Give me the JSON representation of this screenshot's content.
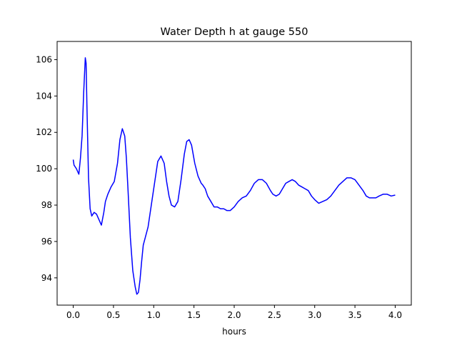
{
  "chart_data": {
    "type": "line",
    "title": "Water Depth h at gauge 550",
    "xlabel": "hours",
    "ylabel": "",
    "xlim": [
      -0.2,
      4.2
    ],
    "ylim": [
      92.5,
      107.0
    ],
    "xticks": [
      0.0,
      0.5,
      1.0,
      1.5,
      2.0,
      2.5,
      3.0,
      3.5,
      4.0
    ],
    "xtick_labels": [
      "0.0",
      "0.5",
      "1.0",
      "1.5",
      "2.0",
      "2.5",
      "3.0",
      "3.5",
      "4.0"
    ],
    "yticks": [
      94,
      96,
      98,
      100,
      102,
      104,
      106
    ],
    "ytick_labels": [
      "94",
      "96",
      "98",
      "100",
      "102",
      "104",
      "106"
    ],
    "grid": false,
    "legend": "none",
    "series": [
      {
        "color": "#0000ff",
        "x": [
          0.0,
          0.01,
          0.04,
          0.07,
          0.09,
          0.11,
          0.13,
          0.15,
          0.16,
          0.17,
          0.19,
          0.21,
          0.23,
          0.26,
          0.29,
          0.32,
          0.35,
          0.38,
          0.4,
          0.43,
          0.47,
          0.51,
          0.55,
          0.58,
          0.61,
          0.64,
          0.66,
          0.68,
          0.71,
          0.74,
          0.77,
          0.79,
          0.81,
          0.83,
          0.85,
          0.87,
          0.9,
          0.93,
          0.97,
          1.01,
          1.05,
          1.09,
          1.13,
          1.16,
          1.19,
          1.22,
          1.26,
          1.3,
          1.34,
          1.38,
          1.41,
          1.44,
          1.47,
          1.51,
          1.55,
          1.57,
          1.59,
          1.61,
          1.64,
          1.67,
          1.71,
          1.75,
          1.79,
          1.83,
          1.87,
          1.91,
          1.95,
          2.0,
          2.05,
          2.1,
          2.15,
          2.2,
          2.25,
          2.3,
          2.35,
          2.4,
          2.45,
          2.48,
          2.52,
          2.56,
          2.6,
          2.64,
          2.68,
          2.72,
          2.76,
          2.8,
          2.84,
          2.88,
          2.92,
          2.96,
          3.0,
          3.05,
          3.1,
          3.15,
          3.2,
          3.25,
          3.3,
          3.35,
          3.4,
          3.45,
          3.5,
          3.55,
          3.6,
          3.64,
          3.68,
          3.72,
          3.76,
          3.8,
          3.85,
          3.9,
          3.95,
          4.0
        ],
        "y": [
          100.5,
          100.2,
          100.0,
          99.7,
          100.6,
          101.8,
          104.2,
          106.1,
          105.8,
          103.5,
          99.5,
          97.8,
          97.4,
          97.6,
          97.5,
          97.2,
          96.9,
          97.6,
          98.2,
          98.6,
          99.0,
          99.3,
          100.3,
          101.6,
          102.2,
          101.8,
          100.6,
          98.9,
          96.2,
          94.4,
          93.5,
          93.1,
          93.2,
          93.9,
          94.9,
          95.8,
          96.3,
          96.8,
          98.0,
          99.2,
          100.4,
          100.7,
          100.3,
          99.3,
          98.5,
          98.0,
          97.9,
          98.2,
          99.4,
          100.8,
          101.5,
          101.6,
          101.3,
          100.3,
          99.6,
          99.4,
          99.2,
          99.1,
          98.9,
          98.5,
          98.2,
          97.9,
          97.9,
          97.8,
          97.8,
          97.7,
          97.7,
          97.9,
          98.2,
          98.4,
          98.5,
          98.8,
          99.2,
          99.4,
          99.4,
          99.2,
          98.8,
          98.6,
          98.5,
          98.6,
          98.9,
          99.2,
          99.3,
          99.4,
          99.3,
          99.1,
          99.0,
          98.9,
          98.8,
          98.5,
          98.3,
          98.1,
          98.2,
          98.3,
          98.5,
          98.8,
          99.1,
          99.3,
          99.5,
          99.5,
          99.4,
          99.1,
          98.8,
          98.5,
          98.4,
          98.4,
          98.4,
          98.5,
          98.6,
          98.6,
          98.5,
          98.55
        ]
      }
    ]
  }
}
